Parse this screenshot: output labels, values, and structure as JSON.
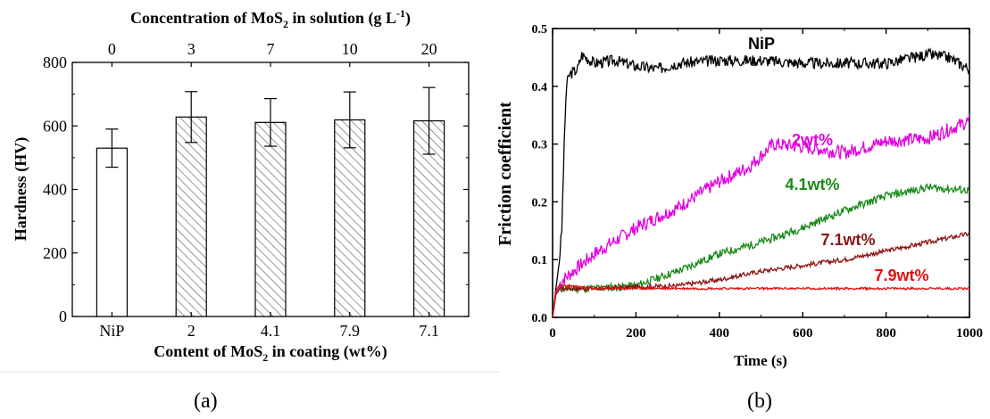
{
  "captions": {
    "a": "(a)",
    "b": "(b)"
  },
  "chart_data": [
    {
      "type": "bar",
      "xlabel_prefix": "Content of MoS",
      "xlabel_sub": "2",
      "xlabel_suffix": " in coating (wt%)",
      "top_label_prefix": "Concentration of MoS",
      "top_label_sub": "2",
      "top_label_suffix": " in solution (g L",
      "top_label_sup": "-1",
      "top_label_end": ")",
      "ylabel": "Hardness (HV)",
      "ylim": [
        0,
        800
      ],
      "yticks": [
        0,
        200,
        400,
        600,
        800
      ],
      "categories": [
        "NiP",
        "2",
        "4.1",
        "7.9",
        "7.1"
      ],
      "top_categories": [
        "0",
        "3",
        "7",
        "10",
        "20"
      ],
      "values": [
        530,
        628,
        611,
        619,
        616
      ],
      "errors": [
        60,
        80,
        75,
        88,
        105
      ],
      "fills": [
        "open",
        "hatched",
        "hatched",
        "hatched",
        "hatched"
      ]
    },
    {
      "type": "line",
      "xlabel": "Time (s)",
      "ylabel": "Friction coefficient",
      "xlim": [
        0,
        1000
      ],
      "ylim": [
        0.0,
        0.5
      ],
      "xticks": [
        0,
        200,
        400,
        600,
        800,
        1000
      ],
      "yticks": [
        "0.0",
        "0.1",
        "0.2",
        "0.3",
        "0.4",
        "0.5"
      ],
      "series": [
        {
          "name": "NiP",
          "color": "#000000",
          "label_color": "#000000",
          "points": [
            [
              0,
              0
            ],
            [
              8,
              0.05
            ],
            [
              15,
              0.09
            ],
            [
              22,
              0.15
            ],
            [
              28,
              0.3
            ],
            [
              33,
              0.4
            ],
            [
              40,
              0.42
            ],
            [
              60,
              0.43
            ],
            [
              70,
              0.455
            ],
            [
              100,
              0.44
            ],
            [
              150,
              0.445
            ],
            [
              200,
              0.435
            ],
            [
              250,
              0.43
            ],
            [
              300,
              0.44
            ],
            [
              400,
              0.445
            ],
            [
              500,
              0.445
            ],
            [
              600,
              0.44
            ],
            [
              700,
              0.44
            ],
            [
              800,
              0.44
            ],
            [
              900,
              0.455
            ],
            [
              950,
              0.45
            ],
            [
              1000,
              0.43
            ]
          ],
          "noise": 0.01,
          "seed": 3
        },
        {
          "name": "2wt%",
          "color": "#e000e0",
          "label_color": "#e000e0",
          "points": [
            [
              0,
              0
            ],
            [
              8,
              0.04
            ],
            [
              15,
              0.055
            ],
            [
              25,
              0.065
            ],
            [
              50,
              0.08
            ],
            [
              100,
              0.11
            ],
            [
              200,
              0.155
            ],
            [
              300,
              0.19
            ],
            [
              400,
              0.235
            ],
            [
              470,
              0.26
            ],
            [
              530,
              0.3
            ],
            [
              600,
              0.295
            ],
            [
              700,
              0.285
            ],
            [
              800,
              0.305
            ],
            [
              900,
              0.31
            ],
            [
              950,
              0.325
            ],
            [
              1000,
              0.34
            ]
          ],
          "noise": 0.012,
          "seed": 7
        },
        {
          "name": "4.1wt%",
          "color": "#1a8a1a",
          "label_color": "#1a8a1a",
          "points": [
            [
              0,
              0
            ],
            [
              8,
              0.04
            ],
            [
              20,
              0.05
            ],
            [
              100,
              0.05
            ],
            [
              200,
              0.055
            ],
            [
              300,
              0.08
            ],
            [
              400,
              0.11
            ],
            [
              500,
              0.13
            ],
            [
              600,
              0.155
            ],
            [
              700,
              0.185
            ],
            [
              800,
              0.21
            ],
            [
              900,
              0.225
            ],
            [
              1000,
              0.22
            ]
          ],
          "noise": 0.007,
          "seed": 11
        },
        {
          "name": "7.1wt%",
          "color": "#8b1414",
          "label_color": "#8b1414",
          "points": [
            [
              0,
              0
            ],
            [
              8,
              0.04
            ],
            [
              20,
              0.05
            ],
            [
              100,
              0.05
            ],
            [
              300,
              0.055
            ],
            [
              400,
              0.065
            ],
            [
              500,
              0.08
            ],
            [
              600,
              0.09
            ],
            [
              700,
              0.1
            ],
            [
              800,
              0.115
            ],
            [
              900,
              0.13
            ],
            [
              1000,
              0.145
            ]
          ],
          "noise": 0.004,
          "seed": 17
        },
        {
          "name": "7.9wt%",
          "color": "#e01010",
          "label_color": "#e01010",
          "points": [
            [
              0,
              0
            ],
            [
              8,
              0.045
            ],
            [
              15,
              0.055
            ],
            [
              30,
              0.055
            ],
            [
              100,
              0.05
            ],
            [
              400,
              0.05
            ],
            [
              700,
              0.05
            ],
            [
              1000,
              0.05
            ]
          ],
          "noise": 0.002,
          "seed": 23
        }
      ]
    }
  ]
}
